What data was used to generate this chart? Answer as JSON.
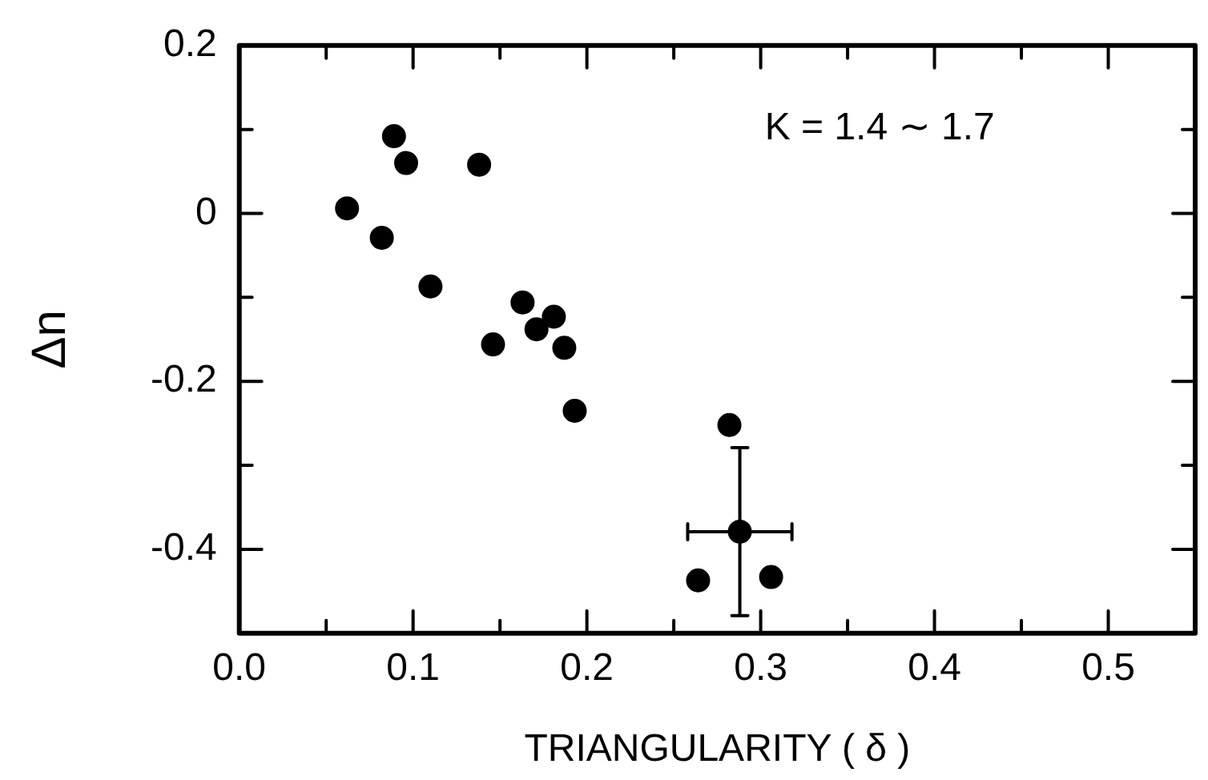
{
  "chart_data": {
    "type": "scatter",
    "xlabel": "TRIANGULARITY ( δ )",
    "ylabel": "Δn",
    "annotations": [
      "K = 1.4 ∼ 1.7"
    ],
    "x": [
      0.089,
      0.096,
      0.138,
      0.062,
      0.082,
      0.11,
      0.163,
      0.181,
      0.171,
      0.146,
      0.187,
      0.193,
      0.282,
      0.288,
      0.264,
      0.306
    ],
    "values": [
      0.092,
      0.06,
      0.058,
      0.006,
      -0.029,
      -0.087,
      -0.106,
      -0.123,
      -0.138,
      -0.156,
      -0.16,
      -0.235,
      -0.252,
      -0.379,
      -0.437,
      -0.433
    ],
    "errors": [
      null,
      null,
      null,
      null,
      null,
      null,
      null,
      null,
      null,
      null,
      null,
      null,
      null,
      0.1,
      null,
      null
    ],
    "xerrors": [
      null,
      null,
      null,
      null,
      null,
      null,
      null,
      null,
      null,
      null,
      null,
      null,
      null,
      0.03,
      null,
      null
    ],
    "color": "#000000",
    "marker": "circle",
    "grid": false,
    "legend": false,
    "xlim": [
      0,
      0.55
    ],
    "xticks": [
      {
        "value": 0,
        "label": "0.0"
      },
      {
        "value": 0.05,
        "label": null
      },
      0.1,
      {
        "value": 0.15,
        "label": null
      },
      0.2,
      {
        "value": 0.25,
        "label": null
      },
      0.3,
      {
        "value": 0.35,
        "label": null
      },
      0.4,
      {
        "value": 0.45,
        "label": null
      },
      0.5
    ],
    "ylim": [
      -0.5,
      0.2
    ],
    "yticks": [
      0.2,
      {
        "value": 0.1,
        "label": null
      },
      {
        "value": 0,
        "label": "0"
      },
      {
        "value": -0.1,
        "label": null
      },
      -0.2,
      {
        "value": -0.3,
        "label": null
      },
      -0.4
    ]
  }
}
